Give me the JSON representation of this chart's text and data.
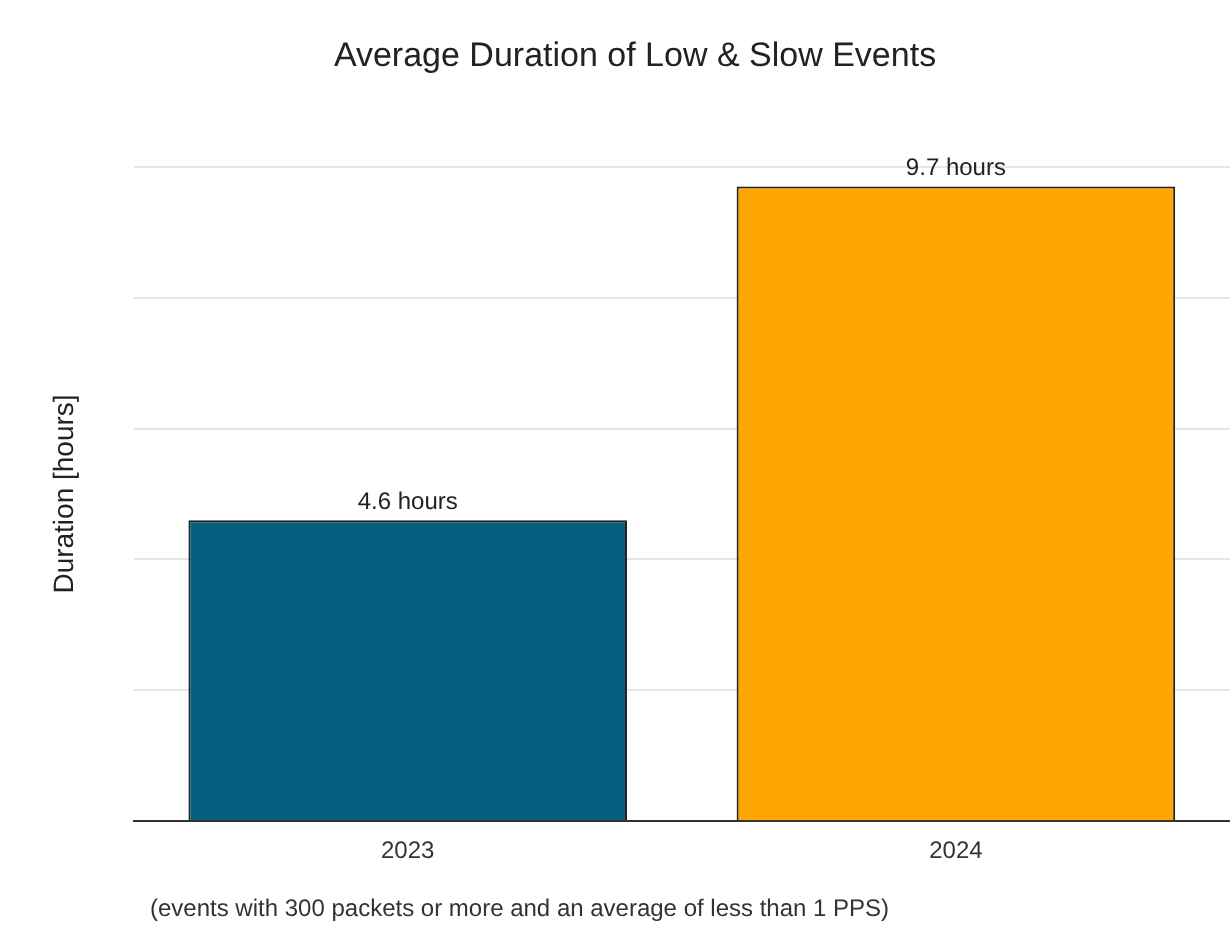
{
  "chart_data": {
    "type": "bar",
    "title": "Average Duration of Low & Slow Events",
    "ylabel": "Duration [hours]",
    "categories": [
      "2023",
      "2024"
    ],
    "values": [
      4.6,
      9.7
    ],
    "colors": [
      "#065e7e",
      "#ffa600"
    ],
    "value_labels": [
      "4.6 hours",
      "9.7 hours"
    ],
    "ylim": [
      0,
      10
    ],
    "yticks": [
      {
        "value": 0,
        "label": null
      },
      {
        "value": 2,
        "label": null
      },
      {
        "value": 4,
        "label": null
      },
      {
        "value": 6,
        "label": null
      },
      {
        "value": 8,
        "label": null
      },
      {
        "value": 10,
        "label": null
      }
    ],
    "grid": "y",
    "legend": false,
    "annotations": [
      "(events with 300 packets or more and an average of less than 1 PPS)"
    ]
  }
}
